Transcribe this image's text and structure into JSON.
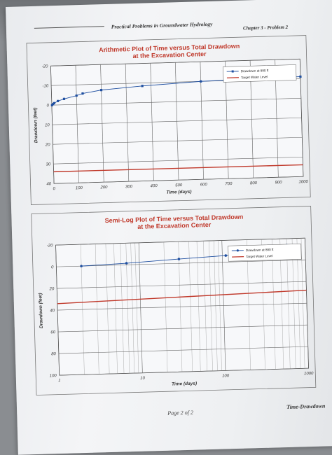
{
  "header": {
    "book_title": "Practical Problems in Groundwater Hydrology",
    "chapter": "Chapter 3 - Problem 2"
  },
  "footer": {
    "page": "Page 2 of 2",
    "right": "Time-Drawdown"
  },
  "chart_data": [
    {
      "type": "line",
      "title_lines": [
        "Arithmetic Plot of Time versus Total Drawdown",
        "at the Excavation Center"
      ],
      "xlabel": "Time (days)",
      "ylabel": "Drawdown (feet)",
      "xlim": [
        0,
        1000
      ],
      "ylim": [
        -20,
        40
      ],
      "y_inverted": true,
      "x_scale": "linear",
      "xticks": [
        0,
        100,
        200,
        300,
        400,
        500,
        600,
        700,
        800,
        900,
        1000
      ],
      "yticks": [
        -20,
        -10,
        0,
        10,
        20,
        30,
        40
      ],
      "grid": true,
      "legend": "top-right",
      "series": [
        {
          "name": "Drawdown at 880 ft",
          "color": "#1f4fa0",
          "marker": "square",
          "x": [
            1,
            5,
            10,
            25,
            50,
            100,
            125,
            200,
            365,
            600,
            1000
          ],
          "y": [
            0,
            -0.5,
            -1,
            -2,
            -3,
            -4.5,
            -5.5,
            -7,
            -8.5,
            -10,
            -11
          ]
        },
        {
          "name": "Target Water Level",
          "color": "#c0392b",
          "marker": "none",
          "x": [
            0,
            1000
          ],
          "y": [
            34,
            34
          ]
        }
      ]
    },
    {
      "type": "line",
      "title_lines": [
        "Semi-Log Plot of Time versus Total Drawdown",
        "at the Excavation Center"
      ],
      "xlabel": "Time (days)",
      "ylabel": "Drawdown (feet)",
      "xlim": [
        1,
        1000
      ],
      "ylim": [
        -20,
        100
      ],
      "y_inverted": true,
      "x_scale": "log",
      "xticks": [
        1,
        10,
        100,
        1000
      ],
      "yticks": [
        -20,
        0,
        20,
        40,
        60,
        80,
        100
      ],
      "grid": true,
      "legend": "top-right",
      "series": [
        {
          "name": "Drawdown at 880 ft",
          "color": "#1f4fa0",
          "marker": "circle",
          "x": [
            2,
            7,
            30,
            110,
            180,
            270,
            600
          ],
          "y": [
            0,
            -1.5,
            -4,
            -6,
            -8,
            -10,
            -14
          ]
        },
        {
          "name": "Target Water Level",
          "color": "#c0392b",
          "marker": "none",
          "x": [
            1,
            1000
          ],
          "y": [
            34,
            28
          ]
        }
      ]
    }
  ]
}
